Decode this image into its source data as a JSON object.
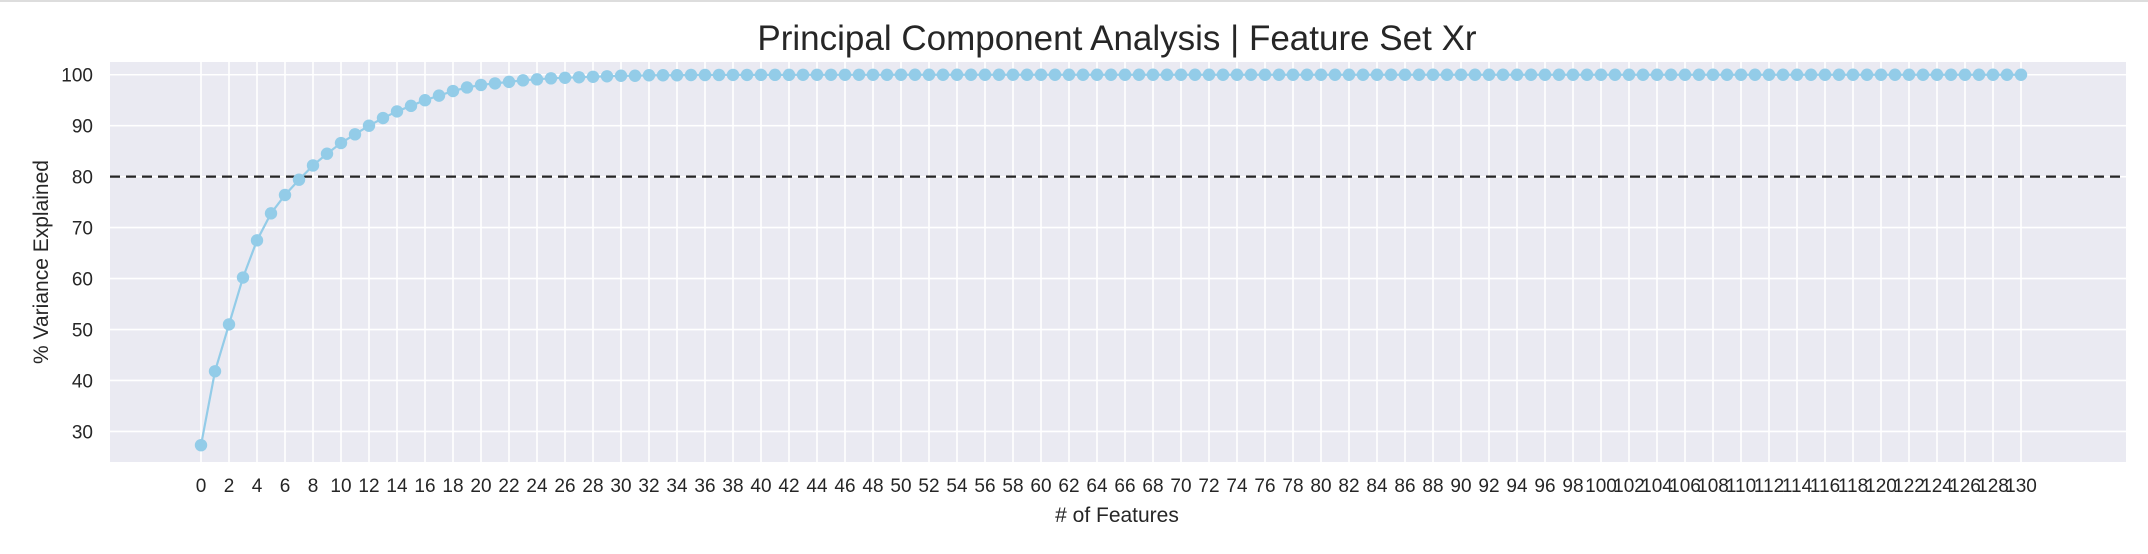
{
  "chart_data": {
    "type": "line",
    "title": "Principal Component Analysis | Feature Set Xr",
    "xlabel": "# of Features",
    "ylabel": "% Variance Explained",
    "xlim": [
      -6.5,
      137.5
    ],
    "ylim": [
      24,
      102.5
    ],
    "x_ticks": [
      0,
      2,
      4,
      6,
      8,
      10,
      12,
      14,
      16,
      18,
      20,
      22,
      24,
      26,
      28,
      30,
      32,
      34,
      36,
      38,
      40,
      42,
      44,
      46,
      48,
      50,
      52,
      54,
      56,
      58,
      60,
      62,
      64,
      66,
      68,
      70,
      72,
      74,
      76,
      78,
      80,
      82,
      84,
      86,
      88,
      90,
      92,
      94,
      96,
      98,
      100,
      102,
      104,
      106,
      108,
      110,
      112,
      114,
      116,
      118,
      120,
      122,
      124,
      126,
      128,
      130
    ],
    "y_ticks": [
      30,
      40,
      50,
      60,
      70,
      80,
      90,
      100
    ],
    "grid": true,
    "threshold": 80,
    "colors": {
      "series": "#93cce8",
      "threshold": "#262626",
      "plot_bg": "#eaeaf2",
      "grid": "#ffffff"
    },
    "series": [
      {
        "values": [
          27.3,
          41.8,
          51.0,
          60.2,
          67.5,
          72.8,
          76.4,
          79.4,
          82.2,
          84.5,
          86.6,
          88.3,
          90.0,
          91.5,
          92.8,
          93.9,
          95.0,
          95.9,
          96.8,
          97.5,
          98.0,
          98.3,
          98.6,
          98.9,
          99.1,
          99.3,
          99.4,
          99.5,
          99.6,
          99.7,
          99.8,
          99.8,
          99.9,
          99.9,
          99.9,
          99.95,
          99.95,
          99.96,
          99.97,
          99.97,
          99.98,
          99.98,
          99.98,
          99.99,
          99.99,
          99.99,
          99.99,
          99.99,
          99.99,
          99.99,
          100,
          100,
          100,
          100,
          100,
          100,
          100,
          100,
          100,
          100,
          100,
          100,
          100,
          100,
          100,
          100,
          100,
          100,
          100,
          100,
          100,
          100,
          100,
          100,
          100,
          100,
          100,
          100,
          100,
          100,
          100,
          100,
          100,
          100,
          100,
          100,
          100,
          100,
          100,
          100,
          100,
          100,
          100,
          100,
          100,
          100,
          100,
          100,
          100,
          100,
          100,
          100,
          100,
          100,
          100,
          100,
          100,
          100,
          100,
          100,
          100,
          100,
          100,
          100,
          100,
          100,
          100,
          100,
          100,
          100,
          100,
          100,
          100,
          100,
          100,
          100,
          100,
          100,
          100,
          100,
          100
        ]
      }
    ]
  }
}
